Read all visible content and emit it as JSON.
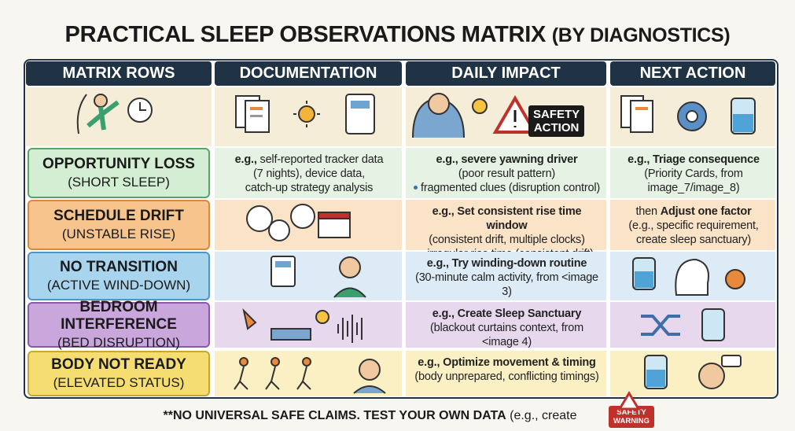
{
  "header": {
    "title_main": "PRACTICAL SLEEP OBSERVATIONS MATRIX",
    "title_suffix": "(BY DIAGNOSTICS)"
  },
  "table": {
    "columns": [
      "MATRIX ROWS",
      "DOCUMENTATION",
      "DAILY IMPACT",
      "NEXT ACTION"
    ],
    "icon_row": {
      "badge": [
        "SAFETY",
        "ACTION"
      ]
    },
    "rows": [
      {
        "label": "OPPORTUNITY LOSS",
        "sublabel": "(SHORT SLEEP)",
        "documentation": {
          "bold": "e.g.,",
          "rest": " self-reported tracker data",
          "lines": [
            "(7 nights), device data,",
            "catch-up strategy analysis"
          ]
        },
        "impact": {
          "bold": "e.g., severe yawning driver",
          "lines": [
            "(poor result pattern)"
          ],
          "bullets": [
            "fragmented clues (disruption control)"
          ]
        },
        "action": {
          "bold": "e.g., Triage consequence",
          "lines": [
            "(Priority Cards, from",
            "image_7/image_8)"
          ]
        }
      },
      {
        "label": "SCHEDULE DRIFT",
        "sublabel": "(UNSTABLE RISE)",
        "impact": {
          "bold": "e.g., Set consistent rise time window",
          "lines": [
            "(consistent drift, multiple clocks)"
          ],
          "bullets": [
            "irregular rise time (consistent drift)"
          ]
        },
        "action": {
          "prefix": "then ",
          "bold": "Adjust one factor",
          "lines": [
            "(e.g., specific requirement,",
            "create sleep sanctuary)"
          ]
        }
      },
      {
        "label": "NO TRANSITION",
        "sublabel": "(ACTIVE WIND-DOWN)",
        "impact": {
          "bold": "e.g., Try winding-down routine",
          "lines": [
            "(30-minute calm activity, from <image 3)"
          ]
        }
      },
      {
        "label": "BEDROOM INTERFERENCE",
        "sublabel": "(BED DISRUPTION)",
        "impact": {
          "bold": "e.g., Create Sleep Sanctuary",
          "lines": [
            "(blackout curtains context, from <image 4)"
          ]
        }
      },
      {
        "label": "BODY NOT READY",
        "sublabel": "(ELEVATED STATUS)",
        "impact": {
          "bold": "e.g., Optimize movement & timing",
          "lines": [
            "(body unprepared, conflicting timings)"
          ]
        }
      }
    ]
  },
  "footer": {
    "bold": "**NO UNIVERSAL SAFE CLAIMS. TEST YOUR OWN DATA",
    "rest": " (e.g., create",
    "badge": [
      "SAFETY",
      "WARNING"
    ]
  }
}
